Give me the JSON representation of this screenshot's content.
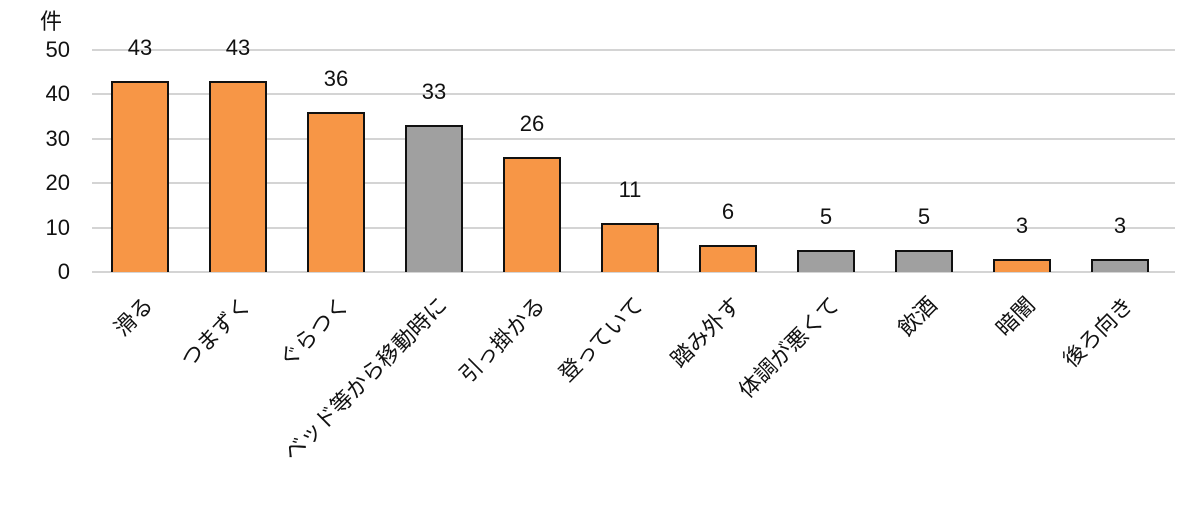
{
  "chart_data": {
    "type": "bar",
    "title": "",
    "xlabel": "",
    "ylabel": "件",
    "ylim": [
      0,
      50
    ],
    "yticks": [
      0,
      10,
      20,
      30,
      40,
      50
    ],
    "grid": true,
    "legend": null,
    "categories": [
      "滑る",
      "つまずく",
      "ぐらつく",
      "ベッド等から移動時に",
      "引っ掛かる",
      "登っていて",
      "踏み外す",
      "体調が悪くて",
      "飲酒",
      "暗闇",
      "後ろ向き"
    ],
    "values": [
      43,
      43,
      36,
      33,
      26,
      11,
      6,
      5,
      5,
      3,
      3
    ],
    "bar_colors": [
      "#F79646",
      "#F79646",
      "#F79646",
      "#A0A0A0",
      "#F79646",
      "#F79646",
      "#F79646",
      "#A0A0A0",
      "#A0A0A0",
      "#F79646",
      "#A0A0A0"
    ]
  },
  "colors": {
    "orange": "#F79646",
    "gray": "#A0A0A0",
    "grid": "#D4D4D4",
    "outline": "#111111"
  }
}
